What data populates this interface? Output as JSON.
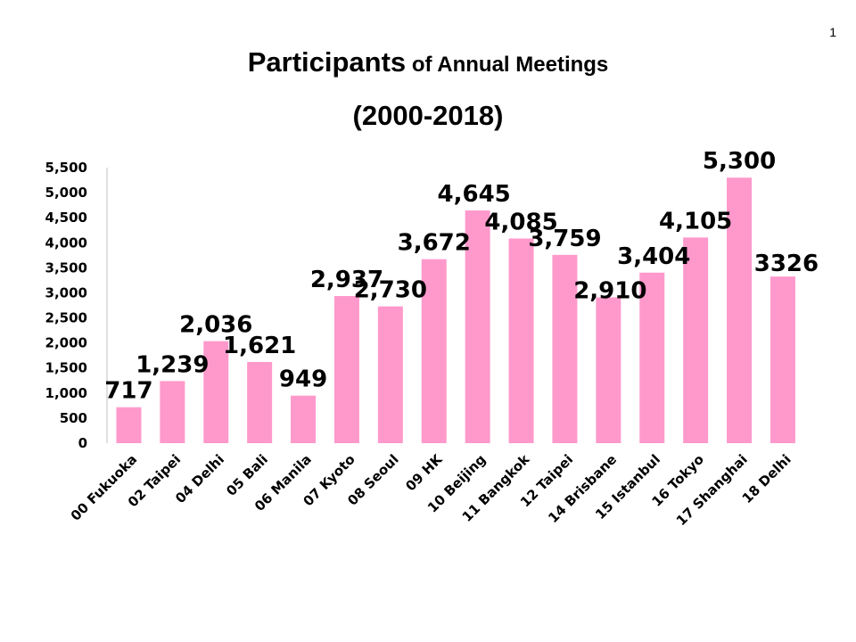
{
  "page_number": "1",
  "title": {
    "main": "Participants",
    "sub": " of Annual Meetings",
    "line2": "(2000-2018)"
  },
  "colors": {
    "bar": "#FF99CC",
    "axis": "#BFBFBF"
  },
  "chart_data": {
    "type": "bar",
    "title": "Participants of Annual Meetings (2000-2018)",
    "xlabel": "",
    "ylabel": "",
    "ylim": [
      0,
      5500
    ],
    "yticks": [
      0,
      500,
      1000,
      1500,
      2000,
      2500,
      3000,
      3500,
      4000,
      4500,
      5000,
      5500
    ],
    "ytick_labels": [
      "0",
      "500",
      "1,000",
      "1,500",
      "2,000",
      "2,500",
      "3,000",
      "3,500",
      "4,000",
      "4,500",
      "5,000",
      "5,500"
    ],
    "grid": false,
    "categories": [
      "00 Fukuoka",
      "02 Taipei",
      "04 Delhi",
      "05 Bali",
      "06 Manila",
      "07 Kyoto",
      "08 Seoul",
      "09 HK",
      "10 Beijing",
      "11 Bangkok",
      "12 Taipei",
      "14 Brisbane",
      "15 Istanbul",
      "16 Tokyo",
      "17 Shanghai",
      "18 Delhi"
    ],
    "values": [
      717,
      1239,
      2036,
      1621,
      949,
      2937,
      2730,
      3672,
      4645,
      4085,
      3759,
      2910,
      3404,
      4105,
      5300,
      3326
    ],
    "data_labels": [
      "717",
      "1,239",
      "2,036",
      "1,621",
      "949",
      "2,937",
      "2,730",
      "3,672",
      "4,645",
      "4,085",
      "3,759",
      "2,910",
      "3,404",
      "4,105",
      "5,300",
      "3326"
    ]
  }
}
